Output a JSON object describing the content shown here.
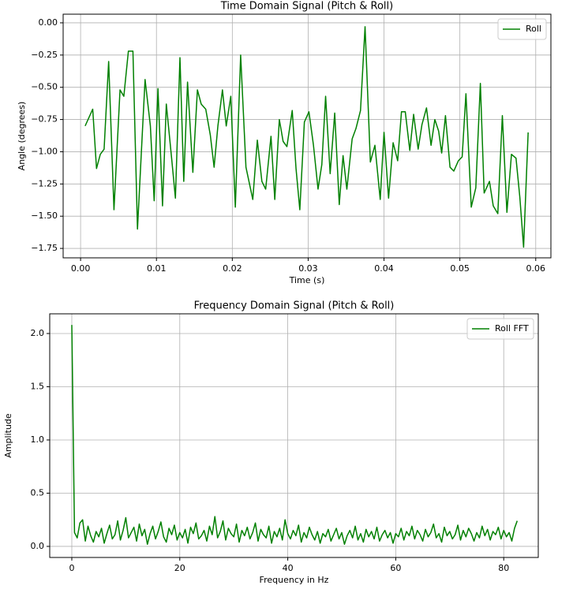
{
  "chart_data": [
    {
      "type": "line",
      "title": "Time Domain Signal (Pitch & Roll)",
      "xlabel": "Time (s)",
      "ylabel": "Angle (degrees)",
      "legend": "upper right",
      "grid": true,
      "xlim": [
        -0.0023,
        0.062
      ],
      "ylim": [
        -1.823,
        0.067
      ],
      "xticks": [
        {
          "value": 0,
          "label": "0.00"
        },
        {
          "value": 0.01,
          "label": "0.01"
        },
        {
          "value": 0.02,
          "label": "0.02"
        },
        {
          "value": 0.03,
          "label": "0.03"
        },
        {
          "value": 0.04,
          "label": "0.04"
        },
        {
          "value": 0.05,
          "label": "0.05"
        },
        {
          "value": 0.06,
          "label": "0.06"
        }
      ],
      "yticks": [
        {
          "value": 0,
          "label": "0.00"
        },
        {
          "value": -0.25,
          "label": "−0.25"
        },
        {
          "value": -0.5,
          "label": "−0.50"
        },
        {
          "value": -0.75,
          "label": "−0.75"
        },
        {
          "value": -1,
          "label": "−1.00"
        },
        {
          "value": -1.25,
          "label": "−1.25"
        },
        {
          "value": -1.5,
          "label": "−1.50"
        },
        {
          "value": -1.75,
          "label": "−1.75"
        }
      ],
      "x": [
        0.0006,
        0.0016,
        0.0021,
        0.0026,
        0.0031,
        0.0037,
        0.0044,
        0.0052,
        0.0057,
        0.0063,
        0.0069,
        0.0075,
        0.0081,
        0.0085,
        0.0092,
        0.0097,
        0.0102,
        0.0108,
        0.0113,
        0.012,
        0.0125,
        0.0131,
        0.0136,
        0.0141,
        0.0148,
        0.0154,
        0.0159,
        0.0165,
        0.0171,
        0.0176,
        0.0181,
        0.0187,
        0.0192,
        0.0198,
        0.0204,
        0.0211,
        0.0218,
        0.0227,
        0.0233,
        0.0239,
        0.0244,
        0.0251,
        0.0256,
        0.0262,
        0.0267,
        0.0272,
        0.0279,
        0.0284,
        0.0289,
        0.0295,
        0.0301,
        0.0307,
        0.0313,
        0.0318,
        0.0323,
        0.0329,
        0.0335,
        0.0341,
        0.0346,
        0.0351,
        0.0358,
        0.0363,
        0.0369,
        0.0375,
        0.0382,
        0.0388,
        0.0395,
        0.04,
        0.0406,
        0.0412,
        0.0418,
        0.0423,
        0.0428,
        0.0434,
        0.0439,
        0.0445,
        0.045,
        0.0456,
        0.0462,
        0.0467,
        0.0472,
        0.0476,
        0.0481,
        0.0487,
        0.0492,
        0.0498,
        0.0503,
        0.0508,
        0.0515,
        0.0521,
        0.0527,
        0.0532,
        0.0539,
        0.0544,
        0.055,
        0.0556,
        0.0562,
        0.0568,
        0.0574,
        0.0579,
        0.0584,
        0.059
      ],
      "series": [
        {
          "name": "Roll",
          "color": "#008000",
          "values": [
            -0.8,
            -0.67,
            -1.13,
            -1.02,
            -0.98,
            -0.3,
            -1.45,
            -0.52,
            -0.57,
            -0.22,
            -0.22,
            -1.6,
            -0.9,
            -0.44,
            -0.8,
            -1.38,
            -0.51,
            -1.42,
            -0.63,
            -1.05,
            -1.36,
            -0.27,
            -1.23,
            -0.46,
            -1.16,
            -0.52,
            -0.63,
            -0.67,
            -0.87,
            -1.12,
            -0.8,
            -0.52,
            -0.8,
            -0.57,
            -1.43,
            -0.25,
            -1.12,
            -1.37,
            -0.91,
            -1.23,
            -1.29,
            -0.88,
            -1.37,
            -0.75,
            -0.92,
            -0.96,
            -0.68,
            -1.13,
            -1.45,
            -0.77,
            -0.69,
            -0.95,
            -1.29,
            -1.1,
            -0.57,
            -1.17,
            -0.7,
            -1.41,
            -1.03,
            -1.29,
            -0.9,
            -0.82,
            -0.68,
            -0.03,
            -1.08,
            -0.95,
            -1.37,
            -0.85,
            -1.36,
            -0.93,
            -1.07,
            -0.69,
            -0.69,
            -0.99,
            -0.71,
            -0.98,
            -0.79,
            -0.66,
            -0.95,
            -0.75,
            -0.84,
            -1.01,
            -0.72,
            -1.12,
            -1.15,
            -1.07,
            -1.04,
            -0.55,
            -1.43,
            -1.28,
            -0.47,
            -1.32,
            -1.23,
            -1.42,
            -1.48,
            -0.72,
            -1.47,
            -1.02,
            -1.05,
            -1.35,
            -1.74,
            -0.85
          ]
        }
      ]
    },
    {
      "type": "line",
      "title": "Frequency Domain Signal (Pitch & Roll)",
      "xlabel": "Frequency in Hz",
      "ylabel": "Amplitude",
      "legend": "upper right",
      "grid": true,
      "xlim": [
        -4.09,
        86.4
      ],
      "ylim": [
        -0.104,
        2.185
      ],
      "xticks": [
        0,
        20,
        40,
        60,
        80
      ],
      "yticks": [
        {
          "value": 0,
          "label": "0.0"
        },
        0.5,
        {
          "value": 1,
          "label": "1.0"
        },
        1.5,
        {
          "value": 2,
          "label": "2.0"
        }
      ],
      "x": [
        0,
        0.5,
        1,
        1.5,
        2,
        2.5,
        3,
        3.5,
        4,
        4.5,
        5,
        5.5,
        6,
        6.5,
        7,
        7.5,
        8,
        8.5,
        9,
        9.5,
        10,
        10.5,
        11,
        11.5,
        12,
        12.5,
        13,
        13.5,
        14,
        14.5,
        15,
        15.5,
        16,
        16.5,
        17,
        17.5,
        18,
        18.5,
        19,
        19.5,
        20,
        20.5,
        21,
        21.5,
        22,
        22.5,
        23,
        23.5,
        24,
        24.5,
        25,
        25.5,
        26,
        26.5,
        27,
        27.5,
        28,
        28.5,
        29,
        29.5,
        30,
        30.5,
        31,
        31.5,
        32,
        32.5,
        33,
        33.5,
        34,
        34.5,
        35,
        35.5,
        36,
        36.5,
        37,
        37.5,
        38,
        38.5,
        39,
        39.5,
        40,
        40.5,
        41,
        41.5,
        42,
        42.5,
        43,
        43.5,
        44,
        44.5,
        45,
        45.5,
        46,
        46.5,
        47,
        47.5,
        48,
        48.5,
        49,
        49.5,
        50,
        50.5,
        51,
        51.5,
        52,
        52.5,
        53,
        53.5,
        54,
        54.5,
        55,
        55.5,
        56,
        56.5,
        57,
        57.5,
        58,
        58.5,
        59,
        59.5,
        60,
        60.5,
        61,
        61.5,
        62,
        62.5,
        63,
        63.5,
        64,
        64.5,
        65,
        65.5,
        66,
        66.5,
        67,
        67.5,
        68,
        68.5,
        69,
        69.5,
        70,
        70.5,
        71,
        71.5,
        72,
        72.5,
        73,
        73.5,
        74,
        74.5,
        75,
        75.5,
        76,
        76.5,
        77,
        77.5,
        78,
        78.5,
        79,
        79.5,
        80,
        80.5,
        81,
        81.5,
        82,
        82.5
      ],
      "series": [
        {
          "name": "Roll FFT",
          "color": "#008000",
          "values": [
            2.08,
            0.13,
            0.08,
            0.22,
            0.25,
            0.05,
            0.19,
            0.1,
            0.04,
            0.14,
            0.09,
            0.17,
            0.03,
            0.12,
            0.2,
            0.07,
            0.11,
            0.24,
            0.06,
            0.15,
            0.27,
            0.08,
            0.13,
            0.18,
            0.05,
            0.21,
            0.1,
            0.16,
            0.02,
            0.12,
            0.19,
            0.07,
            0.14,
            0.23,
            0.09,
            0.04,
            0.17,
            0.11,
            0.2,
            0.06,
            0.13,
            0.08,
            0.16,
            0.03,
            0.18,
            0.12,
            0.22,
            0.07,
            0.1,
            0.15,
            0.05,
            0.19,
            0.11,
            0.28,
            0.08,
            0.14,
            0.24,
            0.06,
            0.17,
            0.12,
            0.09,
            0.21,
            0.04,
            0.15,
            0.1,
            0.18,
            0.07,
            0.13,
            0.22,
            0.05,
            0.16,
            0.11,
            0.08,
            0.19,
            0.03,
            0.14,
            0.09,
            0.17,
            0.06,
            0.25,
            0.12,
            0.07,
            0.15,
            0.1,
            0.2,
            0.04,
            0.13,
            0.08,
            0.18,
            0.11,
            0.06,
            0.14,
            0.03,
            0.12,
            0.09,
            0.16,
            0.05,
            0.11,
            0.17,
            0.07,
            0.13,
            0.02,
            0.1,
            0.15,
            0.08,
            0.19,
            0.06,
            0.12,
            0.04,
            0.16,
            0.09,
            0.14,
            0.07,
            0.18,
            0.05,
            0.11,
            0.15,
            0.08,
            0.13,
            0.03,
            0.12,
            0.09,
            0.17,
            0.06,
            0.14,
            0.1,
            0.19,
            0.07,
            0.15,
            0.11,
            0.05,
            0.16,
            0.09,
            0.13,
            0.21,
            0.08,
            0.12,
            0.04,
            0.18,
            0.1,
            0.14,
            0.07,
            0.11,
            0.2,
            0.06,
            0.15,
            0.09,
            0.17,
            0.12,
            0.05,
            0.13,
            0.08,
            0.19,
            0.1,
            0.16,
            0.06,
            0.14,
            0.11,
            0.18,
            0.07,
            0.15,
            0.09,
            0.13,
            0.05,
            0.17,
            0.24
          ]
        }
      ]
    }
  ]
}
